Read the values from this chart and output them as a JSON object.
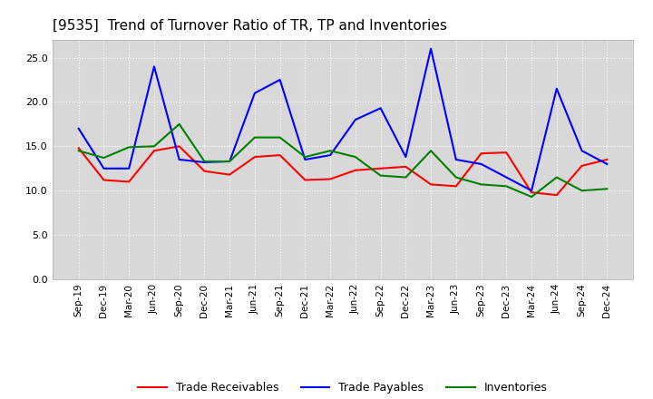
{
  "title": "[9535]  Trend of Turnover Ratio of TR, TP and Inventories",
  "x_labels": [
    "Sep-19",
    "Dec-19",
    "Mar-20",
    "Jun-20",
    "Sep-20",
    "Dec-20",
    "Mar-21",
    "Jun-21",
    "Sep-21",
    "Dec-21",
    "Mar-22",
    "Jun-22",
    "Sep-22",
    "Dec-22",
    "Mar-23",
    "Jun-23",
    "Sep-23",
    "Dec-23",
    "Mar-24",
    "Jun-24",
    "Sep-24",
    "Dec-24"
  ],
  "trade_receivables": [
    14.8,
    11.2,
    11.0,
    14.5,
    15.0,
    12.2,
    11.8,
    13.8,
    14.0,
    11.2,
    11.3,
    12.3,
    12.5,
    12.7,
    10.7,
    10.5,
    14.2,
    14.3,
    9.8,
    9.5,
    12.8,
    13.5
  ],
  "trade_payables": [
    17.0,
    12.5,
    12.5,
    24.0,
    13.5,
    13.2,
    13.3,
    21.0,
    22.5,
    13.5,
    14.0,
    18.0,
    19.3,
    13.8,
    26.0,
    13.5,
    13.0,
    11.5,
    10.0,
    21.5,
    14.5,
    13.0
  ],
  "inventories": [
    14.5,
    13.7,
    14.9,
    15.0,
    17.5,
    13.3,
    13.3,
    16.0,
    16.0,
    13.8,
    14.5,
    13.8,
    11.7,
    11.5,
    14.5,
    11.5,
    10.7,
    10.5,
    9.3,
    11.5,
    10.0,
    10.2
  ],
  "line_colors": {
    "trade_receivables": "#ff0000",
    "trade_payables": "#0000ff",
    "inventories": "#008000"
  },
  "ylim": [
    0,
    27
  ],
  "yticks": [
    0.0,
    5.0,
    10.0,
    15.0,
    20.0,
    25.0
  ],
  "background_color": "#ffffff",
  "plot_bg_color": "#d8d8d8",
  "grid_color": "#ffffff",
  "title_fontsize": 11,
  "tick_fontsize": 7.5,
  "legend_labels": [
    "Trade Receivables",
    "Trade Payables",
    "Inventories"
  ]
}
